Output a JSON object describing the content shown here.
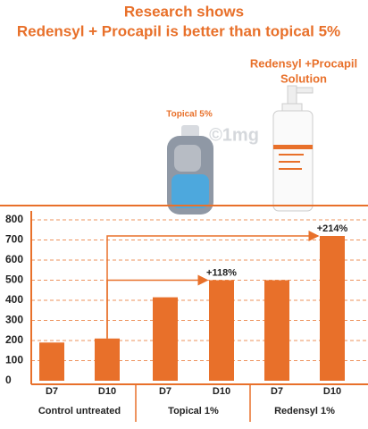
{
  "chart_data": {
    "type": "bar",
    "title": [
      "Research shows",
      "Redensyl + Procapil is better than topical 5%"
    ],
    "products": [
      "Topical 5%",
      [
        "Redensyl +Procapil",
        "Solution"
      ]
    ],
    "watermark": "©1mg",
    "categories": [
      "D7",
      "D10",
      "D7",
      "D10",
      "D7",
      "D10"
    ],
    "groups": [
      "Control untreated",
      "Topical 1%",
      "Redensyl 1%"
    ],
    "values": [
      190,
      210,
      415,
      500,
      500,
      720
    ],
    "annotations": [
      "+118%",
      "+214%"
    ],
    "color": "#e8702a",
    "ylim": [
      0,
      800
    ],
    "yticks": [
      0,
      100,
      200,
      300,
      400,
      500,
      600,
      700,
      800
    ],
    "grid": true
  }
}
